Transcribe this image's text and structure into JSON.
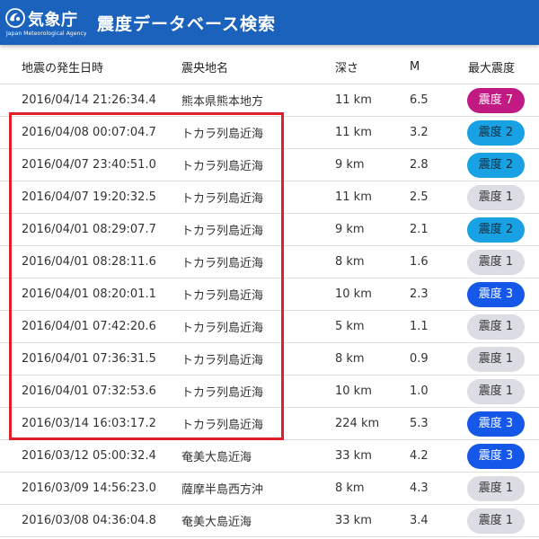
{
  "header": {
    "logo_name": "気象庁",
    "logo_subtitle": "Japan Meteorological Agency",
    "title": "震度データベース検索",
    "background": "#1b62bc"
  },
  "table": {
    "columns": [
      "地震の発生日時",
      "震央地名",
      "深さ",
      "M",
      "最大震度"
    ],
    "rows": [
      {
        "time": "2016/04/14 21:26:34.4",
        "place": "熊本県熊本地方",
        "depth": "11 km",
        "mag": "6.5",
        "intensity": "震度 7",
        "level": 7
      },
      {
        "time": "2016/04/08 00:07:04.7",
        "place": "トカラ列島近海",
        "depth": "11 km",
        "mag": "3.2",
        "intensity": "震度 2",
        "level": 2
      },
      {
        "time": "2016/04/07 23:40:51.0",
        "place": "トカラ列島近海",
        "depth": "9 km",
        "mag": "2.8",
        "intensity": "震度 2",
        "level": 2
      },
      {
        "time": "2016/04/07 19:20:32.5",
        "place": "トカラ列島近海",
        "depth": "11 km",
        "mag": "2.5",
        "intensity": "震度 1",
        "level": 1
      },
      {
        "time": "2016/04/01 08:29:07.7",
        "place": "トカラ列島近海",
        "depth": "9 km",
        "mag": "2.1",
        "intensity": "震度 2",
        "level": 2
      },
      {
        "time": "2016/04/01 08:28:11.6",
        "place": "トカラ列島近海",
        "depth": "8 km",
        "mag": "1.6",
        "intensity": "震度 1",
        "level": 1
      },
      {
        "time": "2016/04/01 08:20:01.1",
        "place": "トカラ列島近海",
        "depth": "10 km",
        "mag": "2.3",
        "intensity": "震度 3",
        "level": 3
      },
      {
        "time": "2016/04/01 07:42:20.6",
        "place": "トカラ列島近海",
        "depth": "5 km",
        "mag": "1.1",
        "intensity": "震度 1",
        "level": 1
      },
      {
        "time": "2016/04/01 07:36:31.5",
        "place": "トカラ列島近海",
        "depth": "8 km",
        "mag": "0.9",
        "intensity": "震度 1",
        "level": 1
      },
      {
        "time": "2016/04/01 07:32:53.6",
        "place": "トカラ列島近海",
        "depth": "10 km",
        "mag": "1.0",
        "intensity": "震度 1",
        "level": 1
      },
      {
        "time": "2016/03/14 16:03:17.2",
        "place": "トカラ列島近海",
        "depth": "224 km",
        "mag": "5.3",
        "intensity": "震度 3",
        "level": 3
      },
      {
        "time": "2016/03/12 05:00:32.4",
        "place": "奄美大島近海",
        "depth": "33 km",
        "mag": "4.2",
        "intensity": "震度 3",
        "level": 3
      },
      {
        "time": "2016/03/09 14:56:23.0",
        "place": "薩摩半島西方沖",
        "depth": "8 km",
        "mag": "4.3",
        "intensity": "震度 1",
        "level": 1
      },
      {
        "time": "2016/03/08 04:36:04.8",
        "place": "奄美大島近海",
        "depth": "33 km",
        "mag": "3.4",
        "intensity": "震度 1",
        "level": 1
      }
    ]
  },
  "intensity_colors": {
    "1": "#dcdde4",
    "2": "#18a1e3",
    "3": "#1557e8",
    "7": "#c11a83"
  },
  "highlight_color": "#e11f26"
}
